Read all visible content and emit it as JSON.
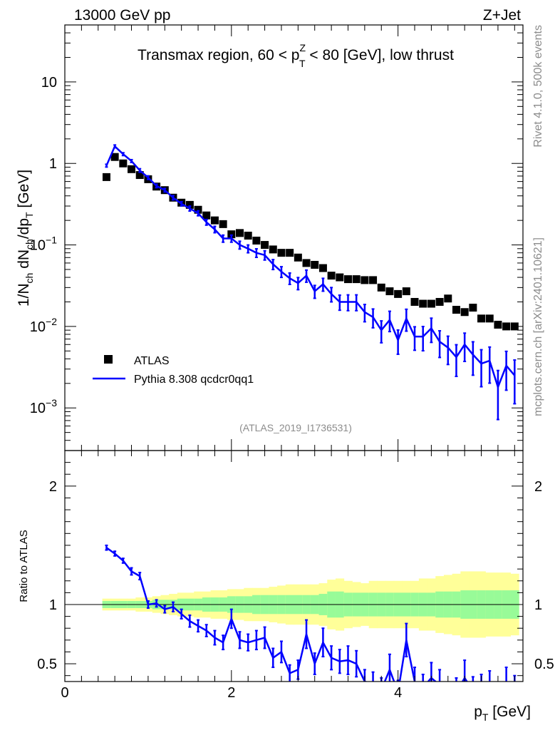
{
  "header": {
    "left": "13000 GeV pp",
    "right": "Z+Jet"
  },
  "side": {
    "rivet": "Rivet 4.1.0,  500k events",
    "plots": "mcplots.cern.ch [arXiv:2401.10621]"
  },
  "chart_data": [
    {
      "type": "scatter",
      "panel": "main",
      "title_text": "Transmax region, 60 < p",
      "title_sup": "Z",
      "title_sub": "T",
      "title_tail": " < 80 [GeV], low thrust",
      "ylabel": "1/N_ch dN_ch/dp_T [GeV]",
      "yscale": "log",
      "ylim": [
        0.0003,
        50
      ],
      "xlim": [
        0,
        5.5
      ],
      "y_ticks": [
        {
          "value": 0.001,
          "base": "10",
          "exp": "−3"
        },
        {
          "value": 0.01,
          "base": "10",
          "exp": "−2"
        },
        {
          "value": 0.1,
          "base": "10",
          "exp": "−1"
        },
        {
          "value": 1,
          "base": "1",
          "exp": ""
        },
        {
          "value": 10,
          "base": "10",
          "exp": ""
        }
      ],
      "watermark": "(ATLAS_2019_I1736531)",
      "legend": {
        "position": "middle-left",
        "entries": [
          {
            "label": "ATLAS",
            "marker": "square",
            "color": "#000000"
          },
          {
            "label": "Pythia 8.308 qcdcr0qq1",
            "marker": "line",
            "color": "#0000ff"
          }
        ]
      },
      "x": [
        0.5,
        0.6,
        0.7,
        0.8,
        0.9,
        1.0,
        1.1,
        1.2,
        1.3,
        1.4,
        1.5,
        1.6,
        1.7,
        1.8,
        1.9,
        2.0,
        2.1,
        2.2,
        2.3,
        2.4,
        2.5,
        2.6,
        2.7,
        2.8,
        2.9,
        3.0,
        3.1,
        3.2,
        3.3,
        3.4,
        3.5,
        3.6,
        3.7,
        3.8,
        3.9,
        4.0,
        4.1,
        4.2,
        4.3,
        4.4,
        4.5,
        4.6,
        4.7,
        4.8,
        4.9,
        5.0,
        5.1,
        5.2,
        5.3,
        5.4
      ],
      "series": [
        {
          "name": "ATLAS",
          "values": [
            0.68,
            1.2,
            1.0,
            0.85,
            0.72,
            0.64,
            0.52,
            0.47,
            0.38,
            0.33,
            0.31,
            0.27,
            0.23,
            0.2,
            0.18,
            0.135,
            0.14,
            0.13,
            0.113,
            0.1,
            0.088,
            0.08,
            0.08,
            0.07,
            0.06,
            0.057,
            0.052,
            0.042,
            0.04,
            0.038,
            0.038,
            0.037,
            0.037,
            0.03,
            0.027,
            0.025,
            0.027,
            0.02,
            0.019,
            0.019,
            0.02,
            0.022,
            0.016,
            0.015,
            0.017,
            0.0125,
            0.0125,
            0.0105,
            0.01,
            0.01
          ]
        },
        {
          "name": "Pythia 8.308 qcdcr0qq1",
          "values": [
            0.94,
            1.62,
            1.3,
            1.07,
            0.82,
            0.67,
            0.53,
            0.47,
            0.38,
            0.32,
            0.28,
            0.245,
            0.19,
            0.155,
            0.12,
            0.12,
            0.1,
            0.09,
            0.08,
            0.075,
            0.058,
            0.047,
            0.039,
            0.034,
            0.042,
            0.027,
            0.033,
            0.025,
            0.02,
            0.02,
            0.02,
            0.015,
            0.013,
            0.009,
            0.012,
            0.0068,
            0.0125,
            0.0075,
            0.0075,
            0.0095,
            0.0065,
            0.0055,
            0.0042,
            0.006,
            0.0045,
            0.0035,
            0.0038,
            0.0018,
            0.0033,
            0.0025
          ],
          "err_frac": [
            0.04,
            0.04,
            0.04,
            0.04,
            0.05,
            0.05,
            0.05,
            0.05,
            0.06,
            0.06,
            0.07,
            0.07,
            0.08,
            0.09,
            0.1,
            0.1,
            0.11,
            0.11,
            0.12,
            0.13,
            0.14,
            0.15,
            0.16,
            0.17,
            0.17,
            0.18,
            0.18,
            0.2,
            0.21,
            0.22,
            0.22,
            0.24,
            0.26,
            0.3,
            0.28,
            0.33,
            0.3,
            0.32,
            0.33,
            0.33,
            0.36,
            0.38,
            0.42,
            0.38,
            0.44,
            0.48,
            0.47,
            0.6,
            0.5,
            0.55
          ]
        }
      ]
    },
    {
      "type": "line",
      "panel": "ratio",
      "ylabel": "Ratio to ATLAS",
      "xlabel_main": "p",
      "xlabel_sub": "T",
      "xlabel_tail": " [GeV]",
      "ylim": [
        0.35,
        2.3
      ],
      "xlim": [
        0,
        5.5
      ],
      "x_ticks": [
        0,
        2,
        4
      ],
      "y_ticks": [
        0.5,
        1,
        2
      ],
      "band_x": [
        0.45,
        0.55,
        0.65,
        0.75,
        0.85,
        0.95,
        1.05,
        1.15,
        1.25,
        1.35,
        1.45,
        1.55,
        1.65,
        1.75,
        1.85,
        1.95,
        2.05,
        2.15,
        2.25,
        2.35,
        2.45,
        2.55,
        2.65,
        2.75,
        2.85,
        2.95,
        3.05,
        3.15,
        3.25,
        3.35,
        3.45,
        3.55,
        3.65,
        3.75,
        3.85,
        3.95,
        4.05,
        4.15,
        4.25,
        4.35,
        4.45,
        4.55,
        4.65,
        4.75,
        4.85,
        4.95,
        5.05,
        5.15,
        5.25,
        5.35,
        5.45
      ],
      "band_green": [
        0.03,
        0.03,
        0.03,
        0.03,
        0.03,
        0.03,
        0.04,
        0.04,
        0.04,
        0.05,
        0.05,
        0.05,
        0.06,
        0.06,
        0.06,
        0.07,
        0.07,
        0.07,
        0.08,
        0.08,
        0.08,
        0.08,
        0.08,
        0.08,
        0.08,
        0.08,
        0.09,
        0.11,
        0.11,
        0.1,
        0.1,
        0.1,
        0.1,
        0.1,
        0.1,
        0.1,
        0.1,
        0.1,
        0.1,
        0.1,
        0.11,
        0.11,
        0.11,
        0.12,
        0.12,
        0.12,
        0.12,
        0.12,
        0.12,
        0.12
      ],
      "band_yellow": [
        0.05,
        0.05,
        0.05,
        0.05,
        0.06,
        0.06,
        0.07,
        0.08,
        0.09,
        0.1,
        0.1,
        0.11,
        0.11,
        0.12,
        0.12,
        0.13,
        0.13,
        0.14,
        0.14,
        0.14,
        0.15,
        0.16,
        0.17,
        0.17,
        0.17,
        0.17,
        0.18,
        0.21,
        0.22,
        0.2,
        0.19,
        0.18,
        0.2,
        0.2,
        0.2,
        0.2,
        0.2,
        0.2,
        0.22,
        0.22,
        0.24,
        0.25,
        0.26,
        0.28,
        0.28,
        0.28,
        0.27,
        0.27,
        0.27,
        0.26
      ],
      "series": [
        {
          "name": "Pythia 8.308 qcdcr0qq1 / ATLAS",
          "values": [
            1.48,
            1.43,
            1.37,
            1.28,
            1.24,
            1.0,
            1.01,
            0.96,
            0.98,
            0.92,
            0.86,
            0.82,
            0.78,
            0.72,
            0.68,
            0.88,
            0.7,
            0.68,
            0.7,
            0.72,
            0.55,
            0.6,
            0.42,
            0.45,
            0.75,
            0.5,
            0.68,
            0.55,
            0.52,
            0.53,
            0.5,
            0.35,
            0.33,
            0.28,
            0.45,
            0.26,
            0.7,
            0.35,
            0.3,
            0.38,
            0.32,
            0.25,
            0.26,
            0.38,
            0.27,
            0.28,
            0.3,
            0.18,
            0.32,
            0.26
          ],
          "err": [
            0.02,
            0.02,
            0.02,
            0.03,
            0.03,
            0.03,
            0.03,
            0.03,
            0.04,
            0.04,
            0.05,
            0.05,
            0.05,
            0.06,
            0.06,
            0.08,
            0.07,
            0.07,
            0.08,
            0.09,
            0.08,
            0.09,
            0.07,
            0.08,
            0.12,
            0.09,
            0.12,
            0.1,
            0.1,
            0.12,
            0.11,
            0.1,
            0.1,
            0.1,
            0.13,
            0.1,
            0.14,
            0.12,
            0.11,
            0.13,
            0.13,
            0.1,
            0.12,
            0.15,
            0.12,
            0.13,
            0.14,
            0.1,
            0.15,
            0.14
          ]
        }
      ]
    }
  ]
}
